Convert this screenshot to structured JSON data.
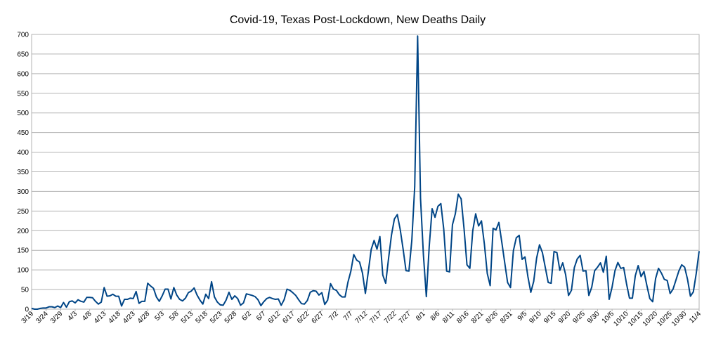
{
  "chart_data": {
    "type": "line",
    "title": "Covid-19, Texas Post-Lockdown, New Deaths Daily",
    "xlabel": "",
    "ylabel": "",
    "ylim": [
      0,
      700
    ],
    "yticks": [
      0,
      50,
      100,
      150,
      200,
      250,
      300,
      350,
      400,
      450,
      500,
      550,
      600,
      650,
      700
    ],
    "grid": true,
    "legend": "none",
    "x_start": "3/19",
    "x_tick_labels": [
      "3/19",
      "3/24",
      "3/29",
      "4/3",
      "4/8",
      "4/13",
      "4/18",
      "4/23",
      "4/28",
      "5/3",
      "5/8",
      "5/13",
      "5/18",
      "5/23",
      "5/28",
      "6/2",
      "6/7",
      "6/12",
      "6/17",
      "6/22",
      "6/27",
      "7/2",
      "7/7",
      "7/12",
      "7/17",
      "7/22",
      "7/27",
      "8/1",
      "8/6",
      "8/11",
      "8/16",
      "8/21",
      "8/26",
      "8/31",
      "9/5",
      "9/10",
      "9/15",
      "9/20",
      "9/25",
      "9/30",
      "10/5",
      "10/10",
      "10/15",
      "10/20",
      "10/25",
      "10/30",
      "11/4"
    ],
    "series": [
      {
        "line_color": "#004586",
        "values": [
          2,
          0,
          0,
          2,
          3,
          3,
          6,
          6,
          4,
          8,
          4,
          17,
          5,
          19,
          21,
          16,
          24,
          20,
          18,
          30,
          30,
          29,
          20,
          13,
          18,
          55,
          33,
          34,
          38,
          33,
          33,
          8,
          25,
          25,
          28,
          27,
          45,
          15,
          20,
          20,
          66,
          59,
          53,
          31,
          20,
          34,
          51,
          51,
          26,
          55,
          36,
          25,
          21,
          28,
          42,
          46,
          54,
          36,
          23,
          13,
          38,
          27,
          70,
          31,
          18,
          11,
          10,
          23,
          43,
          25,
          34,
          27,
          10,
          16,
          39,
          37,
          35,
          32,
          24,
          9,
          19,
          27,
          30,
          27,
          25,
          26,
          10,
          24,
          51,
          48,
          42,
          35,
          24,
          14,
          13,
          22,
          43,
          47,
          46,
          36,
          42,
          12,
          23,
          65,
          51,
          48,
          37,
          31,
          31,
          69,
          97,
          139,
          125,
          120,
          92,
          40,
          95,
          152,
          175,
          153,
          185,
          87,
          66,
          130,
          189,
          230,
          241,
          203,
          153,
          98,
          97,
          175,
          312,
          696,
          282,
          138,
          32,
          160,
          256,
          234,
          262,
          269,
          204,
          97,
          95,
          215,
          243,
          293,
          281,
          205,
          113,
          104,
          200,
          243,
          212,
          225,
          166,
          91,
          60,
          206,
          202,
          221,
          171,
          119,
          68,
          55,
          149,
          182,
          188,
          127,
          133,
          83,
          43,
          71,
          130,
          164,
          144,
          106,
          68,
          66,
          147,
          144,
          99,
          118,
          88,
          35,
          48,
          106,
          128,
          137,
          97,
          98,
          35,
          56,
          98,
          107,
          118,
          94,
          135,
          25,
          56,
          98,
          119,
          104,
          106,
          64,
          28,
          28,
          85,
          111,
          83,
          96,
          60,
          27,
          19,
          78,
          104,
          92,
          76,
          73,
          40,
          51,
          74,
          97,
          113,
          107,
          76,
          33,
          44,
          91,
          148
        ]
      }
    ]
  }
}
